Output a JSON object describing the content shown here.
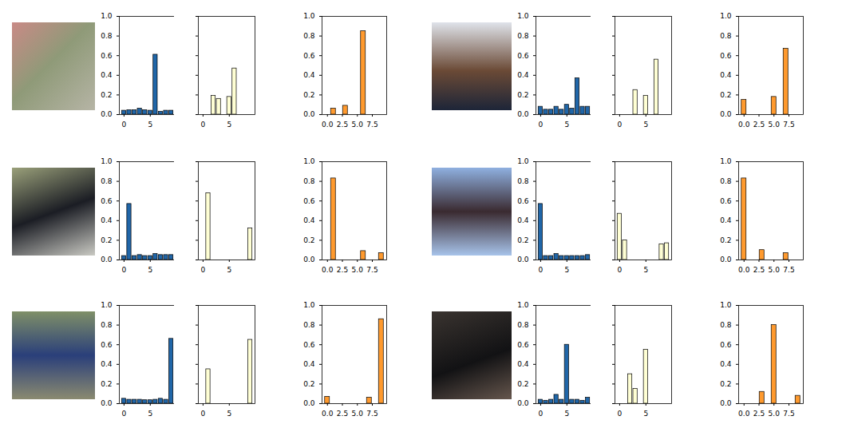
{
  "chart_data": [
    {
      "type": "bar",
      "x": [
        0,
        1,
        2,
        3,
        4,
        5,
        6,
        7,
        8,
        9
      ],
      "values": [
        0.04,
        0.045,
        0.045,
        0.06,
        0.045,
        0.04,
        0.61,
        0.03,
        0.04,
        0.04
      ],
      "color": "#2066a8",
      "xlim": [
        -0.9,
        9.9
      ],
      "ylim": [
        0,
        1
      ],
      "xticks": [
        0,
        5
      ],
      "yticks": [
        {
          "value": 0,
          "label": "0.0"
        },
        {
          "value": 0.2,
          "label": "0.2"
        },
        {
          "value": 0.4,
          "label": "0.4"
        },
        {
          "value": 0.6,
          "label": "0.6"
        },
        {
          "value": 0.8,
          "label": "0.8"
        },
        {
          "value": 1,
          "label": "1.0"
        }
      ]
    },
    {
      "type": "bar",
      "x": [
        0,
        1,
        2,
        3,
        4,
        5,
        6,
        7,
        8,
        9
      ],
      "values": [
        0,
        0,
        0.19,
        0.16,
        0,
        0.18,
        0.47,
        0,
        0,
        0
      ],
      "color": "#ffffd4",
      "xlim": [
        -0.9,
        9.9
      ],
      "ylim": [
        0,
        1
      ],
      "xticks": [
        0,
        5
      ],
      "yticks": [
        0,
        0.2,
        0.4,
        0.6,
        0.8,
        1
      ],
      "tick_labels": "x"
    },
    {
      "type": "bar",
      "x": [
        1,
        3,
        6
      ],
      "values": [
        0.06,
        0.09,
        0.85
      ],
      "color": "#ff9a2e",
      "xlim": [
        -0.9,
        9.9
      ],
      "ylim": [
        0,
        1
      ],
      "xticks": [
        {
          "value": 0,
          "label": "0.0"
        },
        {
          "value": 2.5,
          "label": "2.5"
        },
        {
          "value": 5,
          "label": "5.0"
        },
        {
          "value": 7.5,
          "label": "7.5"
        }
      ],
      "yticks": [
        {
          "value": 0,
          "label": "0.0"
        },
        {
          "value": 0.2,
          "label": "0.2"
        },
        {
          "value": 0.4,
          "label": "0.4"
        },
        {
          "value": 0.6,
          "label": "0.6"
        },
        {
          "value": 0.8,
          "label": "0.8"
        },
        {
          "value": 1,
          "label": "1.0"
        }
      ]
    },
    {
      "type": "bar",
      "x": [
        0,
        1,
        2,
        3,
        4,
        5,
        6,
        7,
        8,
        9
      ],
      "values": [
        0.08,
        0.05,
        0.05,
        0.08,
        0.05,
        0.1,
        0.06,
        0.37,
        0.08,
        0.08
      ],
      "color": "#2066a8",
      "xlim": [
        -0.9,
        9.9
      ],
      "ylim": [
        0,
        1
      ],
      "xticks": [
        0,
        5
      ],
      "yticks": [
        {
          "value": 0,
          "label": "0.0"
        },
        {
          "value": 0.2,
          "label": "0.2"
        },
        {
          "value": 0.4,
          "label": "0.4"
        },
        {
          "value": 0.6,
          "label": "0.6"
        },
        {
          "value": 0.8,
          "label": "0.8"
        },
        {
          "value": 1,
          "label": "1.0"
        }
      ]
    },
    {
      "type": "bar",
      "x": [
        0,
        1,
        2,
        3,
        4,
        5,
        6,
        7,
        8,
        9
      ],
      "values": [
        0,
        0,
        0,
        0.25,
        0,
        0.19,
        0,
        0.56,
        0,
        0
      ],
      "color": "#ffffd4",
      "xlim": [
        -0.9,
        9.9
      ],
      "ylim": [
        0,
        1
      ],
      "xticks": [
        0,
        5
      ],
      "yticks": [
        0,
        0.2,
        0.4,
        0.6,
        0.8,
        1
      ],
      "tick_labels": "x"
    },
    {
      "type": "bar",
      "x": [
        0,
        5,
        7
      ],
      "values": [
        0.15,
        0.18,
        0.67
      ],
      "color": "#ff9a2e",
      "xlim": [
        -0.9,
        9.9
      ],
      "ylim": [
        0,
        1
      ],
      "xticks": [
        {
          "value": 0,
          "label": "0.0"
        },
        {
          "value": 2.5,
          "label": "2.5"
        },
        {
          "value": 5,
          "label": "5.0"
        },
        {
          "value": 7.5,
          "label": "7.5"
        }
      ],
      "yticks": [
        {
          "value": 0,
          "label": "0.0"
        },
        {
          "value": 0.2,
          "label": "0.2"
        },
        {
          "value": 0.4,
          "label": "0.4"
        },
        {
          "value": 0.6,
          "label": "0.6"
        },
        {
          "value": 0.8,
          "label": "0.8"
        },
        {
          "value": 1,
          "label": "1.0"
        }
      ]
    },
    {
      "type": "bar",
      "x": [
        0,
        1,
        2,
        3,
        4,
        5,
        6,
        7,
        8,
        9
      ],
      "values": [
        0.04,
        0.57,
        0.04,
        0.05,
        0.04,
        0.04,
        0.06,
        0.05,
        0.05,
        0.05
      ],
      "color": "#2066a8",
      "xlim": [
        -0.9,
        9.9
      ],
      "ylim": [
        0,
        1
      ],
      "xticks": [
        0,
        5
      ],
      "yticks": [
        {
          "value": 0,
          "label": "0.0"
        },
        {
          "value": 0.2,
          "label": "0.2"
        },
        {
          "value": 0.4,
          "label": "0.4"
        },
        {
          "value": 0.6,
          "label": "0.6"
        },
        {
          "value": 0.8,
          "label": "0.8"
        },
        {
          "value": 1,
          "label": "1.0"
        }
      ]
    },
    {
      "type": "bar",
      "x": [
        0,
        1,
        2,
        3,
        4,
        5,
        6,
        7,
        8,
        9
      ],
      "values": [
        0,
        0.68,
        0,
        0,
        0,
        0,
        0,
        0,
        0,
        0.32
      ],
      "color": "#ffffd4",
      "xlim": [
        -0.9,
        9.9
      ],
      "ylim": [
        0,
        1
      ],
      "xticks": [
        0,
        5
      ],
      "yticks": [
        0,
        0.2,
        0.4,
        0.6,
        0.8,
        1
      ],
      "tick_labels": "x"
    },
    {
      "type": "bar",
      "x": [
        1,
        6,
        9
      ],
      "values": [
        0.83,
        0.09,
        0.07
      ],
      "color": "#ff9a2e",
      "xlim": [
        -0.9,
        9.9
      ],
      "ylim": [
        0,
        1
      ],
      "xticks": [
        {
          "value": 0,
          "label": "0.0"
        },
        {
          "value": 2.5,
          "label": "2.5"
        },
        {
          "value": 5,
          "label": "5.0"
        },
        {
          "value": 7.5,
          "label": "7.5"
        }
      ],
      "yticks": [
        {
          "value": 0,
          "label": "0.0"
        },
        {
          "value": 0.2,
          "label": "0.2"
        },
        {
          "value": 0.4,
          "label": "0.4"
        },
        {
          "value": 0.6,
          "label": "0.6"
        },
        {
          "value": 0.8,
          "label": "0.8"
        },
        {
          "value": 1,
          "label": "1.0"
        }
      ]
    },
    {
      "type": "bar",
      "x": [
        0,
        1,
        2,
        3,
        4,
        5,
        6,
        7,
        8,
        9
      ],
      "values": [
        0.57,
        0.04,
        0.04,
        0.06,
        0.04,
        0.04,
        0.04,
        0.04,
        0.04,
        0.05
      ],
      "color": "#2066a8",
      "xlim": [
        -0.9,
        9.9
      ],
      "ylim": [
        0,
        1
      ],
      "xticks": [
        0,
        5
      ],
      "yticks": [
        {
          "value": 0,
          "label": "0.0"
        },
        {
          "value": 0.2,
          "label": "0.2"
        },
        {
          "value": 0.4,
          "label": "0.4"
        },
        {
          "value": 0.6,
          "label": "0.6"
        },
        {
          "value": 0.8,
          "label": "0.8"
        },
        {
          "value": 1,
          "label": "1.0"
        }
      ]
    },
    {
      "type": "bar",
      "x": [
        0,
        1,
        2,
        3,
        4,
        5,
        6,
        7,
        8,
        9
      ],
      "values": [
        0.47,
        0.2,
        0,
        0,
        0,
        0,
        0,
        0,
        0.16,
        0.17
      ],
      "color": "#ffffd4",
      "xlim": [
        -0.9,
        9.9
      ],
      "ylim": [
        0,
        1
      ],
      "xticks": [
        0,
        5
      ],
      "yticks": [
        0,
        0.2,
        0.4,
        0.6,
        0.8,
        1
      ],
      "tick_labels": "x"
    },
    {
      "type": "bar",
      "x": [
        0,
        3,
        7
      ],
      "values": [
        0.83,
        0.1,
        0.07
      ],
      "color": "#ff9a2e",
      "xlim": [
        -0.9,
        9.9
      ],
      "ylim": [
        0,
        1
      ],
      "xticks": [
        {
          "value": 0,
          "label": "0.0"
        },
        {
          "value": 2.5,
          "label": "2.5"
        },
        {
          "value": 5,
          "label": "5.0"
        },
        {
          "value": 7.5,
          "label": "7.5"
        }
      ],
      "yticks": [
        {
          "value": 0,
          "label": "0.0"
        },
        {
          "value": 0.2,
          "label": "0.2"
        },
        {
          "value": 0.4,
          "label": "0.4"
        },
        {
          "value": 0.6,
          "label": "0.6"
        },
        {
          "value": 0.8,
          "label": "0.8"
        },
        {
          "value": 1,
          "label": "1.0"
        }
      ]
    },
    {
      "type": "bar",
      "x": [
        0,
        1,
        2,
        3,
        4,
        5,
        6,
        7,
        8,
        9
      ],
      "values": [
        0.05,
        0.04,
        0.04,
        0.04,
        0.035,
        0.035,
        0.04,
        0.05,
        0.04,
        0.66
      ],
      "color": "#2066a8",
      "xlim": [
        -0.9,
        9.9
      ],
      "ylim": [
        0,
        1
      ],
      "xticks": [
        0,
        5
      ],
      "yticks": [
        {
          "value": 0,
          "label": "0.0"
        },
        {
          "value": 0.2,
          "label": "0.2"
        },
        {
          "value": 0.4,
          "label": "0.4"
        },
        {
          "value": 0.6,
          "label": "0.6"
        },
        {
          "value": 0.8,
          "label": "0.8"
        },
        {
          "value": 1,
          "label": "1.0"
        }
      ]
    },
    {
      "type": "bar",
      "x": [
        0,
        1,
        2,
        3,
        4,
        5,
        6,
        7,
        8,
        9
      ],
      "values": [
        0,
        0.35,
        0,
        0,
        0,
        0,
        0,
        0,
        0,
        0.65
      ],
      "color": "#ffffd4",
      "xlim": [
        -0.9,
        9.9
      ],
      "ylim": [
        0,
        1
      ],
      "xticks": [
        0,
        5
      ],
      "yticks": [
        0,
        0.2,
        0.4,
        0.6,
        0.8,
        1
      ],
      "tick_labels": "x"
    },
    {
      "type": "bar",
      "x": [
        0,
        7,
        9
      ],
      "values": [
        0.07,
        0.06,
        0.86
      ],
      "color": "#ff9a2e",
      "xlim": [
        -0.9,
        9.9
      ],
      "ylim": [
        0,
        1
      ],
      "xticks": [
        {
          "value": 0,
          "label": "0.0"
        },
        {
          "value": 2.5,
          "label": "2.5"
        },
        {
          "value": 5,
          "label": "5.0"
        },
        {
          "value": 7.5,
          "label": "7.5"
        }
      ],
      "yticks": [
        {
          "value": 0,
          "label": "0.0"
        },
        {
          "value": 0.2,
          "label": "0.2"
        },
        {
          "value": 0.4,
          "label": "0.4"
        },
        {
          "value": 0.6,
          "label": "0.6"
        },
        {
          "value": 0.8,
          "label": "0.8"
        },
        {
          "value": 1,
          "label": "1.0"
        }
      ]
    },
    {
      "type": "bar",
      "x": [
        0,
        1,
        2,
        3,
        4,
        5,
        6,
        7,
        8,
        9
      ],
      "values": [
        0.04,
        0.03,
        0.04,
        0.09,
        0.04,
        0.6,
        0.04,
        0.04,
        0.03,
        0.06
      ],
      "color": "#2066a8",
      "xlim": [
        -0.9,
        9.9
      ],
      "ylim": [
        0,
        1
      ],
      "xticks": [
        0,
        5
      ],
      "yticks": [
        {
          "value": 0,
          "label": "0.0"
        },
        {
          "value": 0.2,
          "label": "0.2"
        },
        {
          "value": 0.4,
          "label": "0.4"
        },
        {
          "value": 0.6,
          "label": "0.6"
        },
        {
          "value": 0.8,
          "label": "0.8"
        },
        {
          "value": 1,
          "label": "1.0"
        }
      ]
    },
    {
      "type": "bar",
      "x": [
        0,
        1,
        2,
        3,
        4,
        5,
        6,
        7,
        8,
        9
      ],
      "values": [
        0,
        0,
        0.3,
        0.15,
        0,
        0.55,
        0,
        0,
        0,
        0
      ],
      "color": "#ffffd4",
      "xlim": [
        -0.9,
        9.9
      ],
      "ylim": [
        0,
        1
      ],
      "xticks": [
        0,
        5
      ],
      "yticks": [
        0,
        0.2,
        0.4,
        0.6,
        0.8,
        1
      ],
      "tick_labels": "x"
    },
    {
      "type": "bar",
      "x": [
        3,
        5,
        9
      ],
      "values": [
        0.12,
        0.8,
        0.08
      ],
      "color": "#ff9a2e",
      "xlim": [
        -0.9,
        9.9
      ],
      "ylim": [
        0,
        1
      ],
      "xticks": [
        {
          "value": 0,
          "label": "0.0"
        },
        {
          "value": 2.5,
          "label": "2.5"
        },
        {
          "value": 5,
          "label": "5.0"
        },
        {
          "value": 7.5,
          "label": "7.5"
        }
      ],
      "yticks": [
        {
          "value": 0,
          "label": "0.0"
        },
        {
          "value": 0.2,
          "label": "0.2"
        },
        {
          "value": 0.4,
          "label": "0.4"
        },
        {
          "value": 0.6,
          "label": "0.6"
        },
        {
          "value": 0.8,
          "label": "0.8"
        },
        {
          "value": 1,
          "label": "1.0"
        }
      ]
    }
  ]
}
